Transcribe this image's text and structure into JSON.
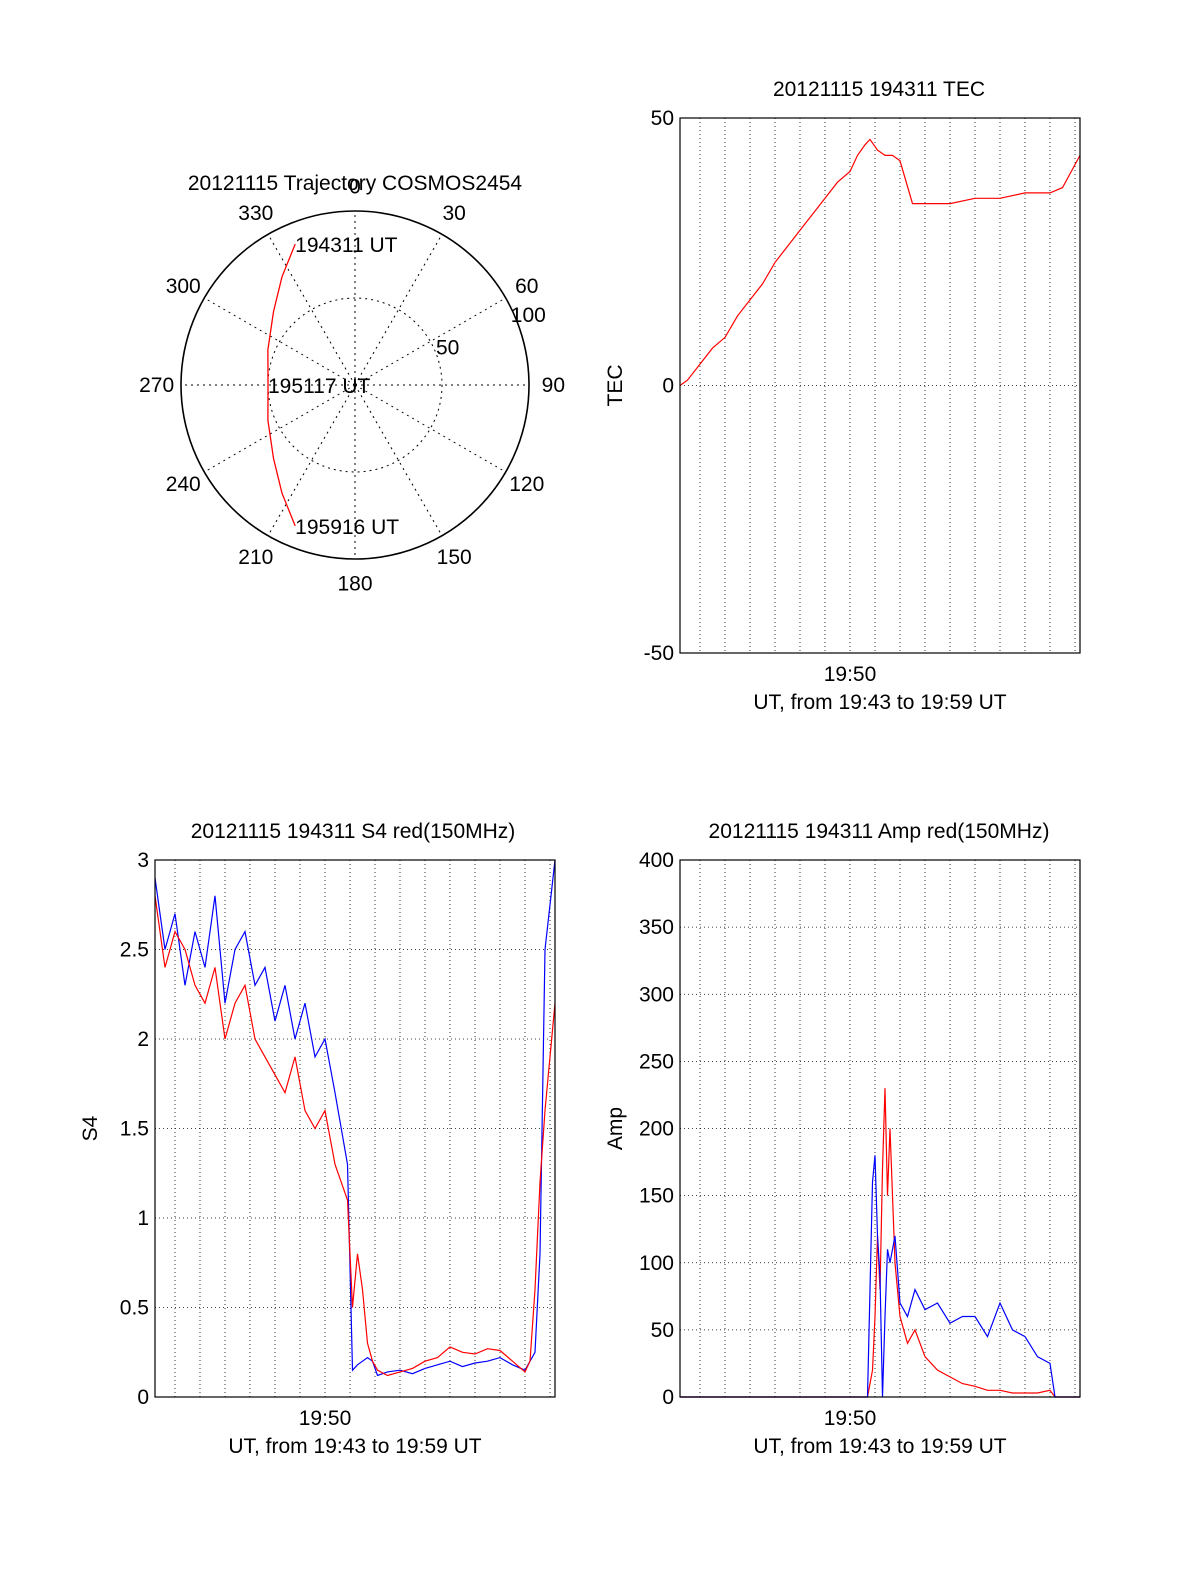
{
  "chart_data": [
    {
      "type": "polar",
      "title": "20121115 Trajectory COSMOS2454",
      "theta_labels": [
        "0",
        "30",
        "60",
        "90",
        "120",
        "150",
        "180",
        "210",
        "240",
        "270",
        "300",
        "330"
      ],
      "theta_values": [
        0,
        30,
        60,
        90,
        120,
        150,
        180,
        210,
        240,
        270,
        300,
        330
      ],
      "r_labels": [
        "50",
        "100"
      ],
      "r_values": [
        50,
        100
      ],
      "r_max": 100,
      "grid": true,
      "annotations": [
        {
          "text": "194311 UT",
          "az": 337,
          "r": 88
        },
        {
          "text": "195117 UT",
          "az": 270,
          "r": 50
        },
        {
          "text": "195916 UT",
          "az": 203,
          "r": 88
        }
      ],
      "series": [
        {
          "color": "#ff0000",
          "points": [
            {
              "az": 337,
              "r": 88
            },
            {
              "az": 326,
              "r": 75
            },
            {
              "az": 312,
              "r": 63
            },
            {
              "az": 292,
              "r": 54
            },
            {
              "az": 270,
              "r": 50
            },
            {
              "az": 248,
              "r": 54
            },
            {
              "az": 228,
              "r": 63
            },
            {
              "az": 214,
              "r": 75
            },
            {
              "az": 203,
              "r": 88
            }
          ]
        }
      ]
    },
    {
      "type": "line",
      "title": "20121115 194311 TEC",
      "ylabel": "TEC",
      "xlabel": "UT, from 19:43 to 19:59 UT",
      "x_tick_labels": [
        "19:50"
      ],
      "x_ticks_min": [
        50
      ],
      "ylim": [
        -50,
        50
      ],
      "y_ticks": [
        -50,
        0,
        50
      ],
      "xlim_min": [
        43.2,
        59.2
      ],
      "grid": true,
      "series": [
        {
          "color": "#ff0000",
          "x": [
            43.2,
            43.5,
            44.0,
            44.5,
            45.0,
            45.5,
            46.0,
            46.5,
            47.0,
            47.5,
            48.0,
            48.5,
            49.0,
            49.5,
            50.0,
            50.3,
            50.6,
            50.8,
            51.1,
            51.4,
            51.7,
            52.0,
            52.5,
            53.0,
            54.0,
            55.0,
            56.0,
            57.0,
            58.0,
            58.5,
            59.2
          ],
          "y": [
            0,
            1,
            4,
            7,
            9,
            13,
            16,
            19,
            23,
            26,
            29,
            32,
            35,
            38,
            40,
            43,
            45,
            46,
            44,
            43,
            43,
            42,
            34,
            34,
            34,
            35,
            35,
            36,
            36,
            37,
            43
          ]
        }
      ]
    },
    {
      "type": "line",
      "title": "20121115 194311 S4 red(150MHz)",
      "ylabel": "S4",
      "xlabel": "UT, from 19:43 to 19:59 UT",
      "x_tick_labels": [
        "19:50"
      ],
      "x_ticks_min": [
        50
      ],
      "ylim": [
        0,
        3
      ],
      "y_ticks": [
        0,
        0.5,
        1,
        1.5,
        2,
        2.5,
        3
      ],
      "y_tick_labels": [
        "0",
        "0.5",
        "1",
        "1.5",
        "2",
        "2.5",
        "3"
      ],
      "xlim_min": [
        43.2,
        59.2
      ],
      "grid": true,
      "series": [
        {
          "color": "#0000ff",
          "x": [
            43.2,
            43.6,
            44.0,
            44.4,
            44.8,
            45.2,
            45.6,
            46.0,
            46.4,
            46.8,
            47.2,
            47.6,
            48.0,
            48.4,
            48.8,
            49.2,
            49.6,
            50.0,
            50.4,
            50.9,
            51.1,
            51.3,
            51.5,
            51.7,
            51.9,
            52.1,
            52.5,
            53.0,
            53.5,
            54.0,
            54.5,
            55.0,
            55.5,
            56.0,
            56.5,
            57.0,
            57.5,
            58.0,
            58.2,
            58.4,
            58.6,
            58.8,
            59.2
          ],
          "y": [
            2.9,
            2.5,
            2.7,
            2.3,
            2.6,
            2.4,
            2.8,
            2.2,
            2.5,
            2.6,
            2.3,
            2.4,
            2.1,
            2.3,
            2.0,
            2.2,
            1.9,
            2.0,
            1.7,
            1.3,
            0.15,
            0.18,
            0.2,
            0.22,
            0.2,
            0.12,
            0.14,
            0.15,
            0.13,
            0.16,
            0.18,
            0.2,
            0.17,
            0.19,
            0.2,
            0.22,
            0.18,
            0.15,
            0.2,
            0.25,
            0.8,
            2.5,
            3.0
          ]
        },
        {
          "color": "#ff0000",
          "x": [
            43.2,
            43.6,
            44.0,
            44.4,
            44.8,
            45.2,
            45.6,
            46.0,
            46.4,
            46.8,
            47.2,
            47.6,
            48.0,
            48.4,
            48.8,
            49.2,
            49.6,
            50.0,
            50.4,
            50.9,
            51.1,
            51.3,
            51.5,
            51.7,
            51.9,
            52.1,
            52.5,
            53.0,
            53.5,
            54.0,
            54.5,
            55.0,
            55.5,
            56.0,
            56.5,
            57.0,
            57.5,
            58.0,
            58.2,
            58.4,
            58.6,
            58.8,
            59.2
          ],
          "y": [
            2.8,
            2.4,
            2.6,
            2.5,
            2.3,
            2.2,
            2.4,
            2.0,
            2.2,
            2.3,
            2.0,
            1.9,
            1.8,
            1.7,
            1.9,
            1.6,
            1.5,
            1.6,
            1.3,
            1.1,
            0.5,
            0.8,
            0.6,
            0.3,
            0.2,
            0.15,
            0.12,
            0.14,
            0.16,
            0.2,
            0.22,
            0.28,
            0.25,
            0.24,
            0.27,
            0.26,
            0.2,
            0.14,
            0.2,
            0.6,
            1.2,
            1.6,
            2.2
          ]
        }
      ]
    },
    {
      "type": "line",
      "title": "20121115 194311 Amp red(150MHz)",
      "ylabel": "Amp",
      "xlabel": "UT, from 19:43 to 19:59 UT",
      "x_tick_labels": [
        "19:50"
      ],
      "x_ticks_min": [
        50
      ],
      "ylim": [
        0,
        400
      ],
      "y_ticks": [
        0,
        50,
        100,
        150,
        200,
        250,
        300,
        350,
        400
      ],
      "xlim_min": [
        43.2,
        59.2
      ],
      "grid": true,
      "series": [
        {
          "color": "#ff0000",
          "x": [
            43.2,
            45.0,
            47.0,
            49.0,
            50.0,
            50.7,
            50.9,
            51.0,
            51.1,
            51.2,
            51.3,
            51.4,
            51.5,
            51.6,
            51.8,
            52.0,
            52.3,
            52.6,
            53.0,
            53.5,
            54.0,
            54.5,
            55.0,
            55.5,
            56.0,
            56.5,
            57.0,
            57.5,
            58.0,
            58.2,
            59.2
          ],
          "y": [
            0,
            0,
            0,
            0,
            0,
            0,
            20,
            60,
            120,
            80,
            170,
            230,
            150,
            200,
            100,
            60,
            40,
            50,
            30,
            20,
            15,
            10,
            8,
            5,
            5,
            3,
            3,
            3,
            5,
            0,
            0
          ]
        },
        {
          "color": "#0000ff",
          "x": [
            43.2,
            45.0,
            47.0,
            49.0,
            50.0,
            50.7,
            50.9,
            51.0,
            51.1,
            51.2,
            51.3,
            51.4,
            51.5,
            51.6,
            51.8,
            52.0,
            52.3,
            52.6,
            53.0,
            53.5,
            54.0,
            54.5,
            55.0,
            55.5,
            56.0,
            56.5,
            57.0,
            57.5,
            58.0,
            58.2,
            59.2
          ],
          "y": [
            0,
            0,
            0,
            0,
            0,
            0,
            160,
            180,
            120,
            90,
            0,
            60,
            110,
            100,
            120,
            70,
            60,
            80,
            65,
            70,
            55,
            60,
            60,
            45,
            70,
            50,
            45,
            30,
            25,
            0,
            0
          ]
        }
      ]
    }
  ]
}
